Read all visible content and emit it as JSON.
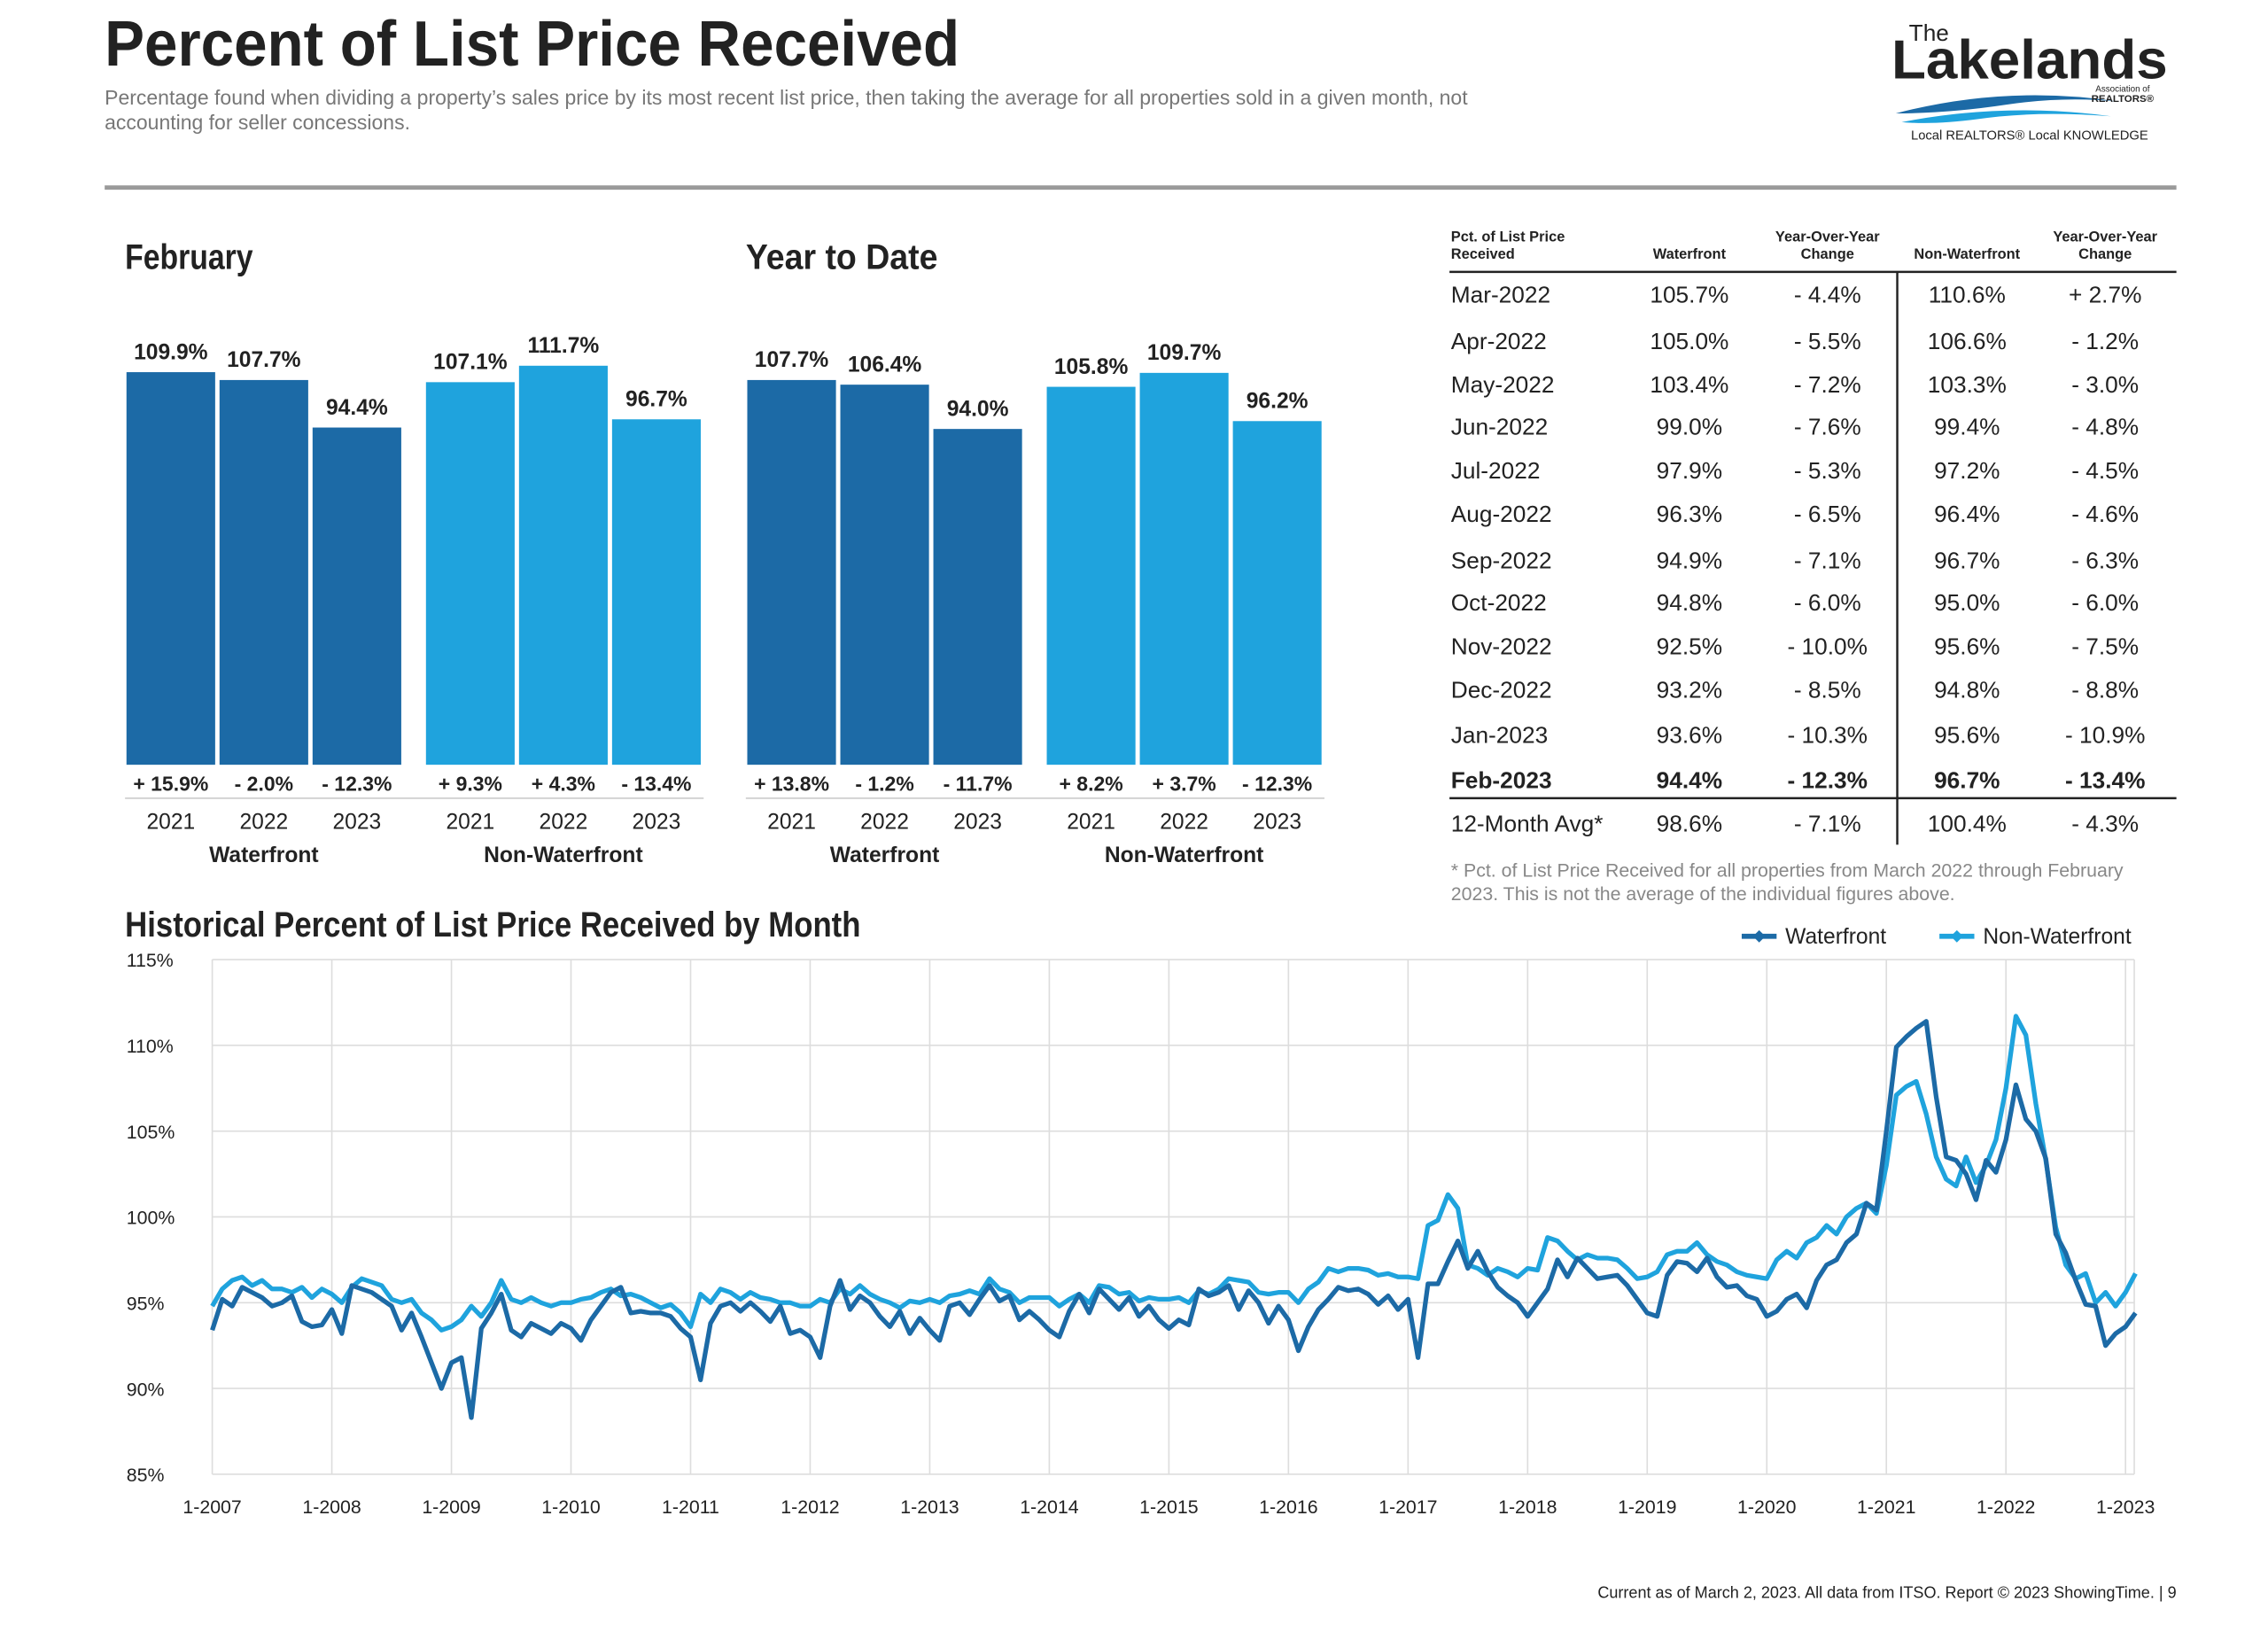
{
  "header": {
    "title": "Percent of List Price Received",
    "subtitle": "Percentage found when dividing a property’s sales price by its most recent list price, then taking the average for all properties sold in a given month, not accounting for seller concessions."
  },
  "logo": {
    "the": "The",
    "name": "Lakelands",
    "assoc": "Association of",
    "realtors": "REALTORS®",
    "tagline": "Local REALTORS® Local KNOWLEDGE"
  },
  "chart_data": [
    {
      "type": "bar",
      "title": "February",
      "categories": [
        "2021",
        "2022",
        "2023"
      ],
      "series": [
        {
          "name": "Waterfront",
          "color": "#1c6aa6",
          "values": [
            109.9,
            107.7,
            94.4
          ],
          "value_labels": [
            "109.9%",
            "107.7%",
            "94.4%"
          ],
          "changes": [
            "+ 15.9%",
            "- 2.0%",
            "- 12.3%"
          ]
        },
        {
          "name": "Non-Waterfront",
          "color": "#1fa3dd",
          "values": [
            107.1,
            111.7,
            96.7
          ],
          "value_labels": [
            "107.1%",
            "111.7%",
            "96.7%"
          ],
          "changes": [
            "+ 9.3%",
            "+ 4.3%",
            "- 13.4%"
          ]
        }
      ]
    },
    {
      "type": "bar",
      "title": "Year to Date",
      "categories": [
        "2021",
        "2022",
        "2023"
      ],
      "series": [
        {
          "name": "Waterfront",
          "color": "#1c6aa6",
          "values": [
            107.7,
            106.4,
            94.0
          ],
          "value_labels": [
            "107.7%",
            "106.4%",
            "94.0%"
          ],
          "changes": [
            "+ 13.8%",
            "- 1.2%",
            "- 11.7%"
          ]
        },
        {
          "name": "Non-Waterfront",
          "color": "#1fa3dd",
          "values": [
            105.8,
            109.7,
            96.2
          ],
          "value_labels": [
            "105.8%",
            "109.7%",
            "96.2%"
          ],
          "changes": [
            "+ 8.2%",
            "+ 3.7%",
            "- 12.3%"
          ]
        }
      ]
    },
    {
      "type": "line",
      "title": "Historical Percent of List Price Received by Month",
      "grid": true,
      "legend": "top-right",
      "ylim": [
        85,
        115
      ],
      "yticks": [
        {
          "value": 85,
          "label": "85%"
        },
        {
          "value": 90,
          "label": "90%"
        },
        {
          "value": 95,
          "label": "95%"
        },
        {
          "value": 100,
          "label": "100%"
        },
        {
          "value": 105,
          "label": "105%"
        },
        {
          "value": 110,
          "label": "110%"
        },
        {
          "value": 115,
          "label": "115%"
        }
      ],
      "xticks": [
        {
          "value": "2007-01",
          "label": "1-2007"
        },
        {
          "value": "2008-01",
          "label": "1-2008"
        },
        {
          "value": "2009-01",
          "label": "1-2009"
        },
        {
          "value": "2010-01",
          "label": "1-2010"
        },
        {
          "value": "2011-01",
          "label": "1-2011"
        },
        {
          "value": "2012-01",
          "label": "1-2012"
        },
        {
          "value": "2013-01",
          "label": "1-2013"
        },
        {
          "value": "2014-01",
          "label": "1-2014"
        },
        {
          "value": "2015-01",
          "label": "1-2015"
        },
        {
          "value": "2016-01",
          "label": "1-2016"
        },
        {
          "value": "2017-01",
          "label": "1-2017"
        },
        {
          "value": "2018-01",
          "label": "1-2018"
        },
        {
          "value": "2019-01",
          "label": "1-2019"
        },
        {
          "value": "2020-01",
          "label": "1-2020"
        },
        {
          "value": "2021-01",
          "label": "1-2021"
        },
        {
          "value": "2022-01",
          "label": "1-2022"
        },
        {
          "value": "2023-01",
          "label": "1-2023"
        }
      ],
      "x": [
        "2007-01",
        "2007-02",
        "2007-03",
        "2007-04",
        "2007-05",
        "2007-06",
        "2007-07",
        "2007-08",
        "2007-09",
        "2007-10",
        "2007-11",
        "2007-12",
        "2008-01",
        "2008-02",
        "2008-03",
        "2008-04",
        "2008-05",
        "2008-06",
        "2008-07",
        "2008-08",
        "2008-09",
        "2008-10",
        "2008-11",
        "2008-12",
        "2009-01",
        "2009-02",
        "2009-03",
        "2009-04",
        "2009-05",
        "2009-06",
        "2009-07",
        "2009-08",
        "2009-09",
        "2009-10",
        "2009-11",
        "2009-12",
        "2010-01",
        "2010-02",
        "2010-03",
        "2010-04",
        "2010-05",
        "2010-06",
        "2010-07",
        "2010-08",
        "2010-09",
        "2010-10",
        "2010-11",
        "2010-12",
        "2011-01",
        "2011-02",
        "2011-03",
        "2011-04",
        "2011-05",
        "2011-06",
        "2011-07",
        "2011-08",
        "2011-09",
        "2011-10",
        "2011-11",
        "2011-12",
        "2012-01",
        "2012-02",
        "2012-03",
        "2012-04",
        "2012-05",
        "2012-06",
        "2012-07",
        "2012-08",
        "2012-09",
        "2012-10",
        "2012-11",
        "2012-12",
        "2013-01",
        "2013-02",
        "2013-03",
        "2013-04",
        "2013-05",
        "2013-06",
        "2013-07",
        "2013-08",
        "2013-09",
        "2013-10",
        "2013-11",
        "2013-12",
        "2014-01",
        "2014-02",
        "2014-03",
        "2014-04",
        "2014-05",
        "2014-06",
        "2014-07",
        "2014-08",
        "2014-09",
        "2014-10",
        "2014-11",
        "2014-12",
        "2015-01",
        "2015-02",
        "2015-03",
        "2015-04",
        "2015-05",
        "2015-06",
        "2015-07",
        "2015-08",
        "2015-09",
        "2015-10",
        "2015-11",
        "2015-12",
        "2016-01",
        "2016-02",
        "2016-03",
        "2016-04",
        "2016-05",
        "2016-06",
        "2016-07",
        "2016-08",
        "2016-09",
        "2016-10",
        "2016-11",
        "2016-12",
        "2017-01",
        "2017-02",
        "2017-03",
        "2017-04",
        "2017-05",
        "2017-06",
        "2017-07",
        "2017-08",
        "2017-09",
        "2017-10",
        "2017-11",
        "2017-12",
        "2018-01",
        "2018-02",
        "2018-03",
        "2018-04",
        "2018-05",
        "2018-06",
        "2018-07",
        "2018-08",
        "2018-09",
        "2018-10",
        "2018-11",
        "2018-12",
        "2019-01",
        "2019-02",
        "2019-03",
        "2019-04",
        "2019-05",
        "2019-06",
        "2019-07",
        "2019-08",
        "2019-09",
        "2019-10",
        "2019-11",
        "2019-12",
        "2020-01",
        "2020-02",
        "2020-03",
        "2020-04",
        "2020-05",
        "2020-06",
        "2020-07",
        "2020-08",
        "2020-09",
        "2020-10",
        "2020-11",
        "2020-12",
        "2021-01",
        "2021-02",
        "2021-03",
        "2021-04",
        "2021-05",
        "2021-06",
        "2021-07",
        "2021-08",
        "2021-09",
        "2021-10",
        "2021-11",
        "2021-12",
        "2022-01",
        "2022-02",
        "2022-03",
        "2022-04",
        "2022-05",
        "2022-06",
        "2022-07",
        "2022-08",
        "2022-09",
        "2022-10",
        "2022-11",
        "2022-12",
        "2023-01",
        "2023-02"
      ],
      "series": [
        {
          "name": "Waterfront",
          "color": "#1c6aa6",
          "values": [
            93.4,
            95.2,
            94.8,
            95.9,
            95.6,
            95.3,
            94.8,
            95.0,
            95.4,
            93.9,
            93.6,
            93.7,
            94.6,
            93.2,
            96.0,
            95.8,
            95.6,
            95.2,
            94.8,
            93.4,
            94.4,
            93.0,
            91.5,
            90.0,
            91.5,
            91.8,
            88.3,
            93.5,
            94.4,
            95.5,
            93.4,
            93.0,
            93.8,
            93.5,
            93.2,
            93.8,
            93.5,
            92.8,
            94.0,
            94.8,
            95.6,
            95.9,
            94.4,
            94.5,
            94.4,
            94.4,
            94.2,
            93.5,
            93.0,
            90.5,
            93.8,
            94.8,
            95.0,
            94.5,
            95.0,
            94.5,
            93.9,
            94.8,
            93.2,
            93.4,
            93.0,
            91.8,
            94.8,
            96.3,
            94.6,
            95.4,
            95.0,
            94.2,
            93.6,
            94.5,
            93.2,
            94.1,
            93.4,
            92.8,
            94.8,
            95.0,
            94.3,
            95.2,
            96.0,
            95.1,
            95.4,
            94.0,
            94.5,
            94.0,
            93.4,
            93.0,
            94.5,
            95.5,
            94.4,
            95.8,
            95.2,
            94.6,
            95.3,
            94.2,
            94.8,
            94.0,
            93.5,
            94.0,
            93.7,
            95.8,
            95.4,
            95.6,
            96.0,
            94.6,
            95.7,
            95.0,
            93.8,
            94.8,
            94.0,
            92.2,
            93.6,
            94.6,
            95.2,
            95.9,
            95.7,
            95.8,
            95.5,
            94.9,
            95.4,
            94.6,
            95.2,
            91.8,
            96.1,
            96.1,
            97.4,
            98.6,
            97.0,
            98.0,
            96.8,
            95.9,
            95.4,
            95.0,
            94.2,
            95.0,
            95.8,
            97.5,
            96.5,
            97.6,
            97.0,
            96.4,
            96.5,
            96.6,
            96.0,
            95.2,
            94.4,
            94.2,
            96.6,
            97.4,
            97.3,
            96.8,
            97.6,
            96.5,
            95.9,
            96.0,
            95.4,
            95.2,
            94.2,
            94.5,
            95.2,
            95.5,
            94.7,
            96.3,
            97.2,
            97.5,
            98.5,
            99.0,
            100.8,
            100.4,
            105.0,
            109.9,
            110.5,
            111.0,
            111.4,
            107.0,
            103.5,
            103.3,
            102.5,
            101.0,
            103.3,
            102.6,
            104.5,
            107.7,
            105.7,
            105.0,
            103.4,
            99.0,
            97.9,
            96.3,
            94.9,
            94.8,
            92.5,
            93.2,
            93.6,
            94.4
          ]
        },
        {
          "name": "Non-Waterfront",
          "color": "#1fa3dd",
          "values": [
            94.8,
            95.8,
            96.3,
            96.5,
            96.0,
            96.3,
            95.8,
            95.8,
            95.6,
            95.9,
            95.3,
            95.8,
            95.5,
            95.0,
            95.9,
            96.4,
            96.2,
            96.0,
            95.2,
            95.0,
            95.2,
            94.4,
            94.0,
            93.4,
            93.6,
            94.0,
            94.8,
            94.2,
            95.0,
            96.3,
            95.2,
            95.0,
            95.3,
            95.0,
            94.8,
            95.0,
            95.0,
            95.2,
            95.3,
            95.6,
            95.8,
            95.4,
            95.5,
            95.3,
            95.0,
            94.7,
            94.9,
            94.4,
            93.6,
            95.5,
            95.0,
            95.8,
            95.6,
            95.2,
            95.6,
            95.3,
            95.2,
            95.0,
            95.0,
            94.8,
            94.8,
            95.2,
            95.0,
            95.8,
            95.5,
            96.0,
            95.5,
            95.2,
            95.0,
            94.7,
            95.1,
            95.0,
            95.2,
            95.0,
            95.4,
            95.5,
            95.7,
            95.5,
            96.4,
            95.8,
            95.6,
            95.0,
            95.3,
            95.3,
            95.3,
            94.8,
            95.2,
            95.5,
            95.0,
            96.0,
            95.9,
            95.5,
            95.6,
            95.1,
            95.3,
            95.2,
            95.2,
            95.3,
            95.0,
            95.7,
            95.5,
            95.8,
            96.4,
            96.3,
            96.2,
            95.6,
            95.5,
            95.6,
            95.6,
            95.0,
            95.8,
            96.2,
            97.0,
            96.8,
            97.0,
            97.0,
            96.9,
            96.6,
            96.7,
            96.5,
            96.5,
            96.4,
            99.5,
            99.8,
            101.3,
            100.5,
            97.2,
            97.0,
            96.6,
            97.0,
            96.8,
            96.5,
            97.0,
            96.9,
            98.8,
            98.6,
            98.0,
            97.5,
            97.8,
            97.6,
            97.6,
            97.5,
            97.0,
            96.4,
            96.5,
            96.8,
            97.8,
            98.0,
            98.0,
            98.5,
            97.8,
            97.4,
            97.2,
            96.8,
            96.6,
            96.5,
            96.4,
            97.5,
            98.0,
            97.6,
            98.5,
            98.8,
            99.5,
            99.0,
            100.0,
            100.5,
            100.8,
            100.2,
            103.0,
            107.1,
            107.6,
            107.9,
            106.0,
            103.5,
            102.2,
            101.8,
            103.5,
            102.0,
            103.0,
            104.5,
            107.5,
            111.7,
            110.6,
            106.6,
            103.3,
            99.4,
            97.2,
            96.4,
            96.7,
            95.0,
            95.6,
            94.8,
            95.6,
            96.7
          ]
        }
      ]
    }
  ],
  "table": {
    "columns": [
      "Pct. of List Price Received",
      "Waterfront",
      "Year-Over-Year Change",
      "Non-Waterfront",
      "Year-Over-Year Change"
    ],
    "rows": [
      [
        "Mar-2022",
        "105.7%",
        "- 4.4%",
        "110.6%",
        "+ 2.7%"
      ],
      [
        "Apr-2022",
        "105.0%",
        "- 5.5%",
        "106.6%",
        "- 1.2%"
      ],
      [
        "May-2022",
        "103.4%",
        "- 7.2%",
        "103.3%",
        "- 3.0%"
      ],
      [
        "Jun-2022",
        "99.0%",
        "- 7.6%",
        "99.4%",
        "- 4.8%"
      ],
      [
        "Jul-2022",
        "97.9%",
        "- 5.3%",
        "97.2%",
        "- 4.5%"
      ],
      [
        "Aug-2022",
        "96.3%",
        "- 6.5%",
        "96.4%",
        "- 4.6%"
      ],
      [
        "Sep-2022",
        "94.9%",
        "- 7.1%",
        "96.7%",
        "- 6.3%"
      ],
      [
        "Oct-2022",
        "94.8%",
        "- 6.0%",
        "95.0%",
        "- 6.0%"
      ],
      [
        "Nov-2022",
        "92.5%",
        "- 10.0%",
        "95.6%",
        "- 7.5%"
      ],
      [
        "Dec-2022",
        "93.2%",
        "- 8.5%",
        "94.8%",
        "- 8.8%"
      ],
      [
        "Jan-2023",
        "93.6%",
        "- 10.3%",
        "95.6%",
        "- 10.9%"
      ],
      [
        "Feb-2023",
        "94.4%",
        "- 12.3%",
        "96.7%",
        "- 13.4%"
      ],
      [
        "12-Month Avg*",
        "98.6%",
        "- 7.1%",
        "100.4%",
        "- 4.3%"
      ]
    ],
    "footnote": "* Pct. of List Price Received for all properties from March 2022 through February 2023. This is not the average of the individual figures above."
  },
  "footer": "Current as of March 2, 2023. All data from ITSO. Report © 2023 ShowingTime.  |  9"
}
